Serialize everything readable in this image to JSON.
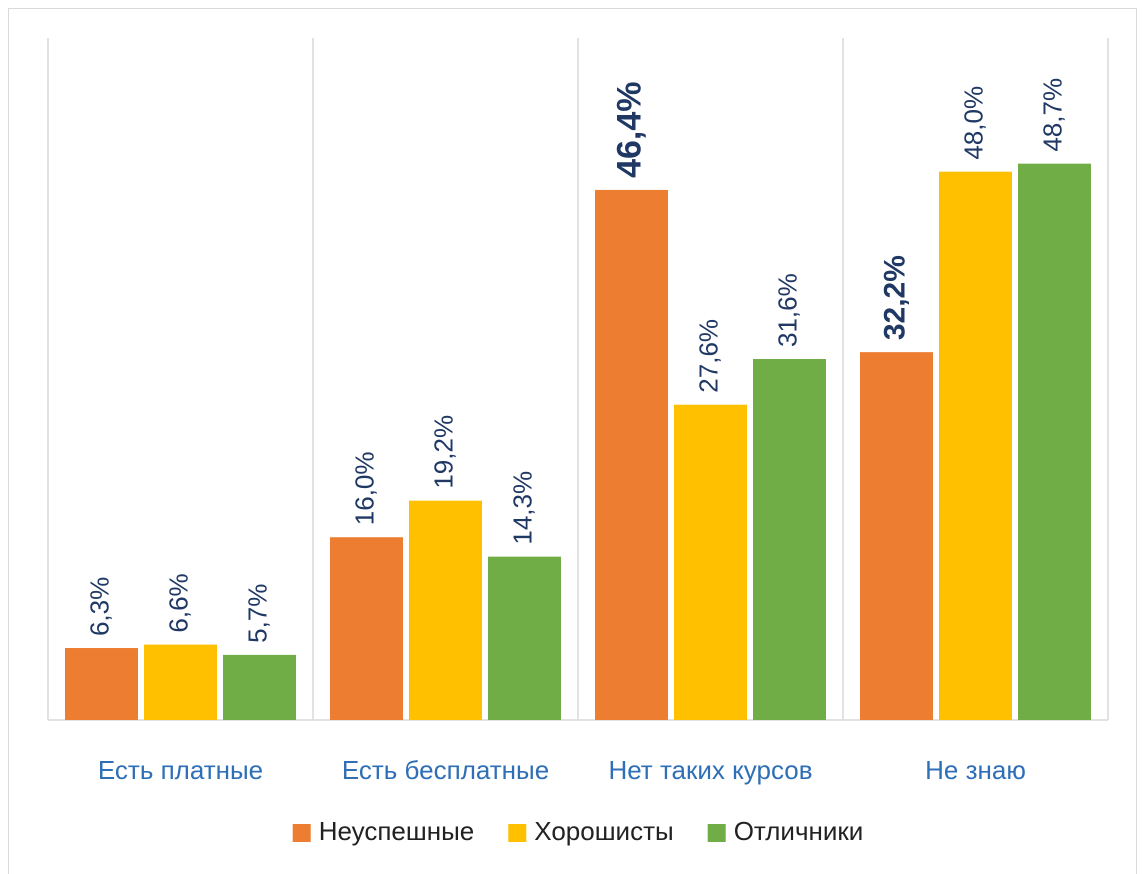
{
  "chart_data": {
    "type": "bar",
    "categories": [
      "Есть платные",
      "Есть бесплатные",
      "Нет таких курсов",
      "Не знаю"
    ],
    "series": [
      {
        "name": "Неуспешные",
        "color": "#ed7d31",
        "values": [
          6.3,
          16.0,
          46.4,
          32.2
        ],
        "value_labels": [
          "6,3%",
          "16,0%",
          "46,4%",
          "32,2%"
        ]
      },
      {
        "name": "Хорошисты",
        "color": "#ffc000",
        "values": [
          6.6,
          19.2,
          27.6,
          48.0
        ],
        "value_labels": [
          "6,6%",
          "19,2%",
          "27,6%",
          "48,0%"
        ]
      },
      {
        "name": "Отличники",
        "color": "#70ad47",
        "values": [
          5.7,
          14.3,
          31.6,
          48.7
        ],
        "value_labels": [
          "5,7%",
          "14,3%",
          "31,6%",
          "48,7%"
        ]
      }
    ],
    "ylim": [
      0,
      59.7
    ],
    "legend": "bottom"
  }
}
